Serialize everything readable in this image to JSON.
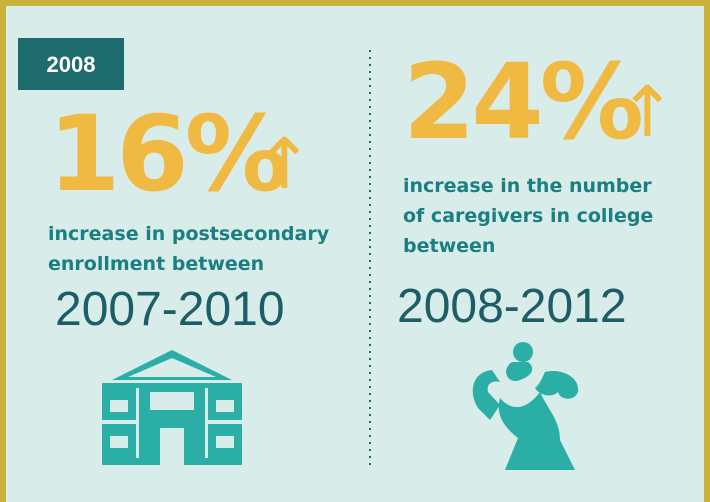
{
  "badge": "2008",
  "left": {
    "stat": "16%",
    "arrow": "↑",
    "lines": [
      "increase in postsecondary",
      "enrollment between"
    ],
    "years": "2007-2010"
  },
  "right": {
    "stat": "24%",
    "arrow": "↑",
    "lines": [
      "increase in the number",
      "of caregivers in college",
      "between"
    ],
    "years": "2008-2012"
  }
}
